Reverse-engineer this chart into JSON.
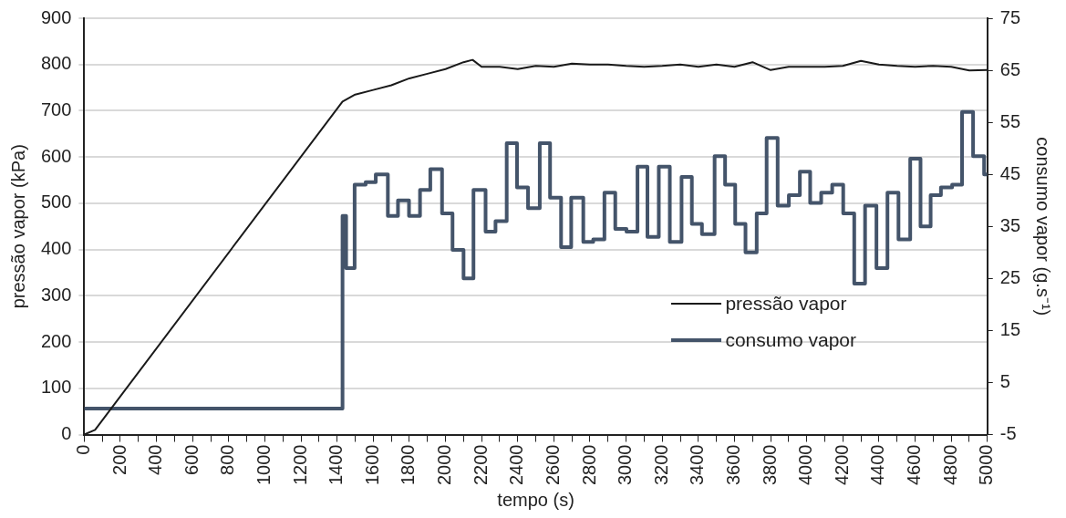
{
  "chart_data": {
    "type": "line",
    "xlabel": "tempo (s)",
    "ylabel": "pressão vapor (kPa)",
    "y2label": "consumo vapor (g.s⁻¹)",
    "xlim": [
      0,
      5000
    ],
    "xticks": [
      0,
      {
        "value": 100,
        "label": null
      },
      200,
      {
        "value": 300,
        "label": null
      },
      400,
      {
        "value": 500,
        "label": null
      },
      600,
      {
        "value": 700,
        "label": null
      },
      800,
      {
        "value": 900,
        "label": null
      },
      1000,
      {
        "value": 1100,
        "label": null
      },
      1200,
      {
        "value": 1300,
        "label": null
      },
      1400,
      {
        "value": 1500,
        "label": null
      },
      1600,
      {
        "value": 1700,
        "label": null
      },
      1800,
      {
        "value": 1900,
        "label": null
      },
      2000,
      {
        "value": 2100,
        "label": null
      },
      2200,
      {
        "value": 2300,
        "label": null
      },
      2400,
      {
        "value": 2500,
        "label": null
      },
      2600,
      {
        "value": 2700,
        "label": null
      },
      2800,
      {
        "value": 2900,
        "label": null
      },
      3000,
      {
        "value": 3100,
        "label": null
      },
      3200,
      {
        "value": 3300,
        "label": null
      },
      3400,
      {
        "value": 3500,
        "label": null
      },
      3600,
      {
        "value": 3700,
        "label": null
      },
      3800,
      {
        "value": 3900,
        "label": null
      },
      4000,
      {
        "value": 4100,
        "label": null
      },
      4200,
      {
        "value": 4300,
        "label": null
      },
      4400,
      {
        "value": 4500,
        "label": null
      },
      4600,
      {
        "value": 4700,
        "label": null
      },
      4800,
      {
        "value": 4900,
        "label": null
      },
      5000
    ],
    "ylim": [
      0,
      900
    ],
    "yticks": [
      0,
      100,
      200,
      300,
      400,
      500,
      600,
      700,
      800,
      900
    ],
    "y2lim": [
      -5,
      75
    ],
    "y2ticks": [
      -5,
      5,
      15,
      25,
      35,
      45,
      55,
      65,
      75
    ],
    "grid": "y",
    "legend": "bottom right",
    "marker": "none",
    "series": [
      {
        "name": "pressão vapor",
        "color": "#1a1a1a",
        "x": [
          0,
          60,
          1430,
          1500,
          1600,
          1700,
          1800,
          1900,
          2000,
          2100,
          2150,
          2200,
          2300,
          2400,
          2500,
          2600,
          2700,
          2800,
          2900,
          3000,
          3100,
          3200,
          3300,
          3400,
          3500,
          3600,
          3700,
          3800,
          3900,
          4000,
          4100,
          4200,
          4300,
          4400,
          4500,
          4600,
          4700,
          4800,
          4900,
          5000
        ],
        "values": [
          0,
          10,
          720,
          735,
          745,
          755,
          770,
          780,
          790,
          805,
          810,
          795,
          795,
          790,
          797,
          795,
          802,
          800,
          800,
          797,
          795,
          797,
          800,
          795,
          800,
          795,
          805,
          788,
          795,
          795,
          795,
          797,
          808,
          800,
          797,
          795,
          797,
          795,
          787,
          788
        ]
      },
      {
        "name": "consumo vapor",
        "type": "step",
        "axis": "y2",
        "color": "#44546a",
        "x": [
          0,
          1430,
          1450,
          1497,
          1558,
          1614,
          1681,
          1737,
          1798,
          1859,
          1916,
          1981,
          2039,
          2100,
          2155,
          2222,
          2277,
          2339,
          2396,
          2457,
          2522,
          2579,
          2640,
          2696,
          2763,
          2818,
          2880,
          2940,
          3002,
          3063,
          3118,
          3181,
          3242,
          3307,
          3364,
          3420,
          3490,
          3548,
          3604,
          3661,
          3723,
          3778,
          3839,
          3901,
          3962,
          4019,
          4080,
          4141,
          4202,
          4263,
          4323,
          4386,
          4447,
          4508,
          4573,
          4630,
          4686,
          4743,
          4805,
          4860,
          4921,
          4982,
          5000
        ],
        "values": [
          0,
          37,
          27,
          43,
          43.5,
          45,
          37,
          40,
          37,
          42,
          46,
          37.5,
          30.5,
          25,
          42,
          34,
          36,
          51,
          42.5,
          38.5,
          51,
          40.5,
          31,
          40.5,
          32,
          32.5,
          41.5,
          34.5,
          34,
          46.5,
          33,
          46.5,
          32,
          44.5,
          35.5,
          33.5,
          48.5,
          43,
          35.5,
          30,
          37.5,
          52,
          39,
          41,
          45.5,
          39.5,
          41.5,
          43,
          37.5,
          24,
          39,
          27,
          41.5,
          32.5,
          48,
          35,
          41,
          42.5,
          43,
          57,
          48.5,
          45,
          45
        ]
      }
    ]
  }
}
